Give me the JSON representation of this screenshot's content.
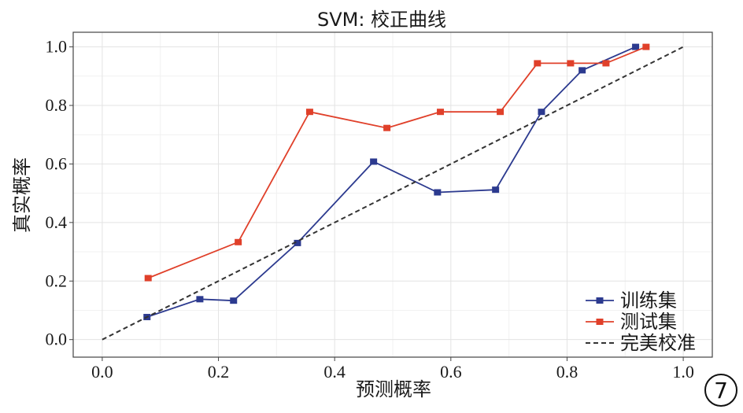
{
  "chart_data": {
    "type": "line",
    "title": "SVM: 校正曲线",
    "xlabel": "预测概率",
    "ylabel": "真实概率",
    "xlim": [
      -0.05,
      1.05
    ],
    "ylim": [
      -0.06,
      1.05
    ],
    "xticks": [
      "0.0",
      "0.2",
      "0.4",
      "0.6",
      "0.8",
      "1.0"
    ],
    "yticks": [
      "0.0",
      "0.2",
      "0.4",
      "0.6",
      "0.8",
      "1.0"
    ],
    "grid": true,
    "legend_position": "bottom-right",
    "series": [
      {
        "name": "训练集",
        "color": "#2c3a8f",
        "marker": "square",
        "line_style": "solid",
        "x": [
          0.077,
          0.168,
          0.226,
          0.336,
          0.467,
          0.577,
          0.677,
          0.756,
          0.826,
          0.918
        ],
        "y": [
          0.077,
          0.138,
          0.133,
          0.33,
          0.608,
          0.503,
          0.512,
          0.778,
          0.92,
          1.0
        ]
      },
      {
        "name": "测试集",
        "color": "#e0402a",
        "marker": "square",
        "line_style": "solid",
        "x": [
          0.079,
          0.234,
          0.357,
          0.49,
          0.582,
          0.685,
          0.749,
          0.806,
          0.867,
          0.936
        ],
        "y": [
          0.21,
          0.333,
          0.778,
          0.723,
          0.778,
          0.778,
          0.944,
          0.944,
          0.944,
          1.0
        ]
      },
      {
        "name": "完美校准",
        "color": "#333333",
        "marker": "none",
        "line_style": "dashed",
        "x": [
          0.0,
          1.0
        ],
        "y": [
          0.0,
          1.0
        ]
      }
    ]
  },
  "badge": {
    "label": "7"
  }
}
